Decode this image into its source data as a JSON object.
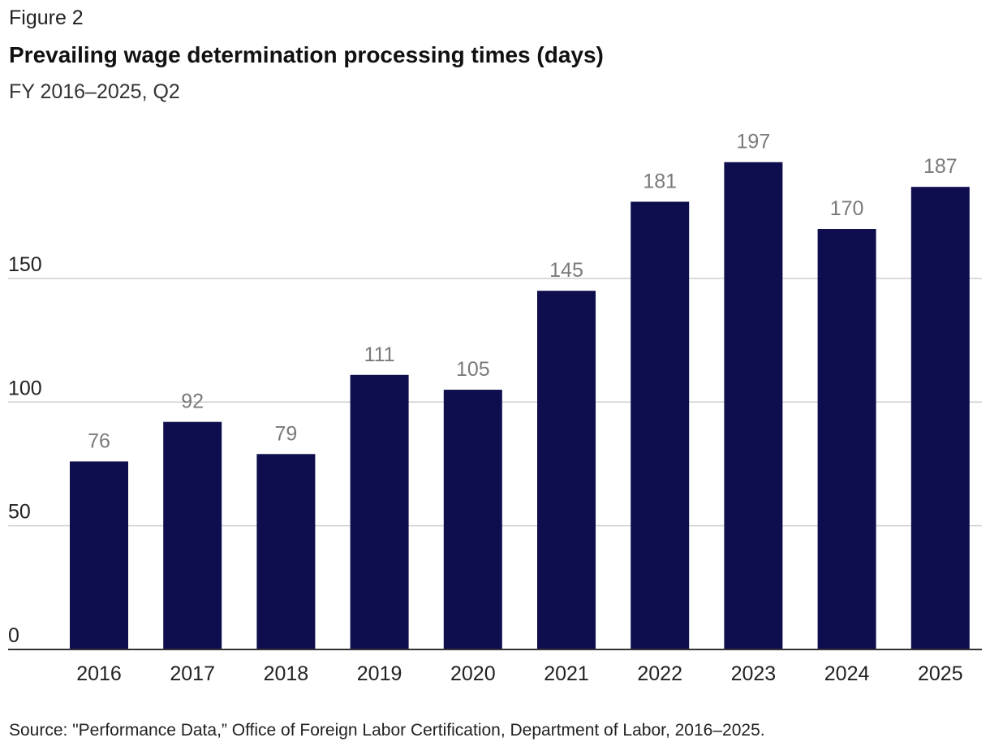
{
  "figure_label": "Figure 2",
  "title": "Prevailing wage determination processing times (days)",
  "subtitle": "FY 2016–2025, Q2",
  "source": "Source: \"Performance Data,” Office of Foreign Labor Certification, Department of Labor, 2016–2025.",
  "colors": {
    "bar": "#0e0e4e",
    "data_label": "#7a7a7a",
    "grid": "#cfcfcf",
    "axis": "#333333",
    "tick_label": "#222222"
  },
  "chart_data": {
    "type": "bar",
    "categories": [
      "2016",
      "2017",
      "2018",
      "2019",
      "2020",
      "2021",
      "2022",
      "2023",
      "2024",
      "2025"
    ],
    "values": [
      76,
      92,
      79,
      111,
      105,
      145,
      181,
      197,
      170,
      187
    ],
    "data_labels": [
      "76",
      "92",
      "79",
      "111",
      "105",
      "145",
      "181",
      "197",
      "170",
      "187"
    ],
    "y_ticks": [
      0,
      50,
      100,
      150
    ],
    "y_tick_labels": [
      "0",
      "50",
      "100",
      "150"
    ],
    "ylim": [
      0,
      210
    ],
    "grid": true
  }
}
